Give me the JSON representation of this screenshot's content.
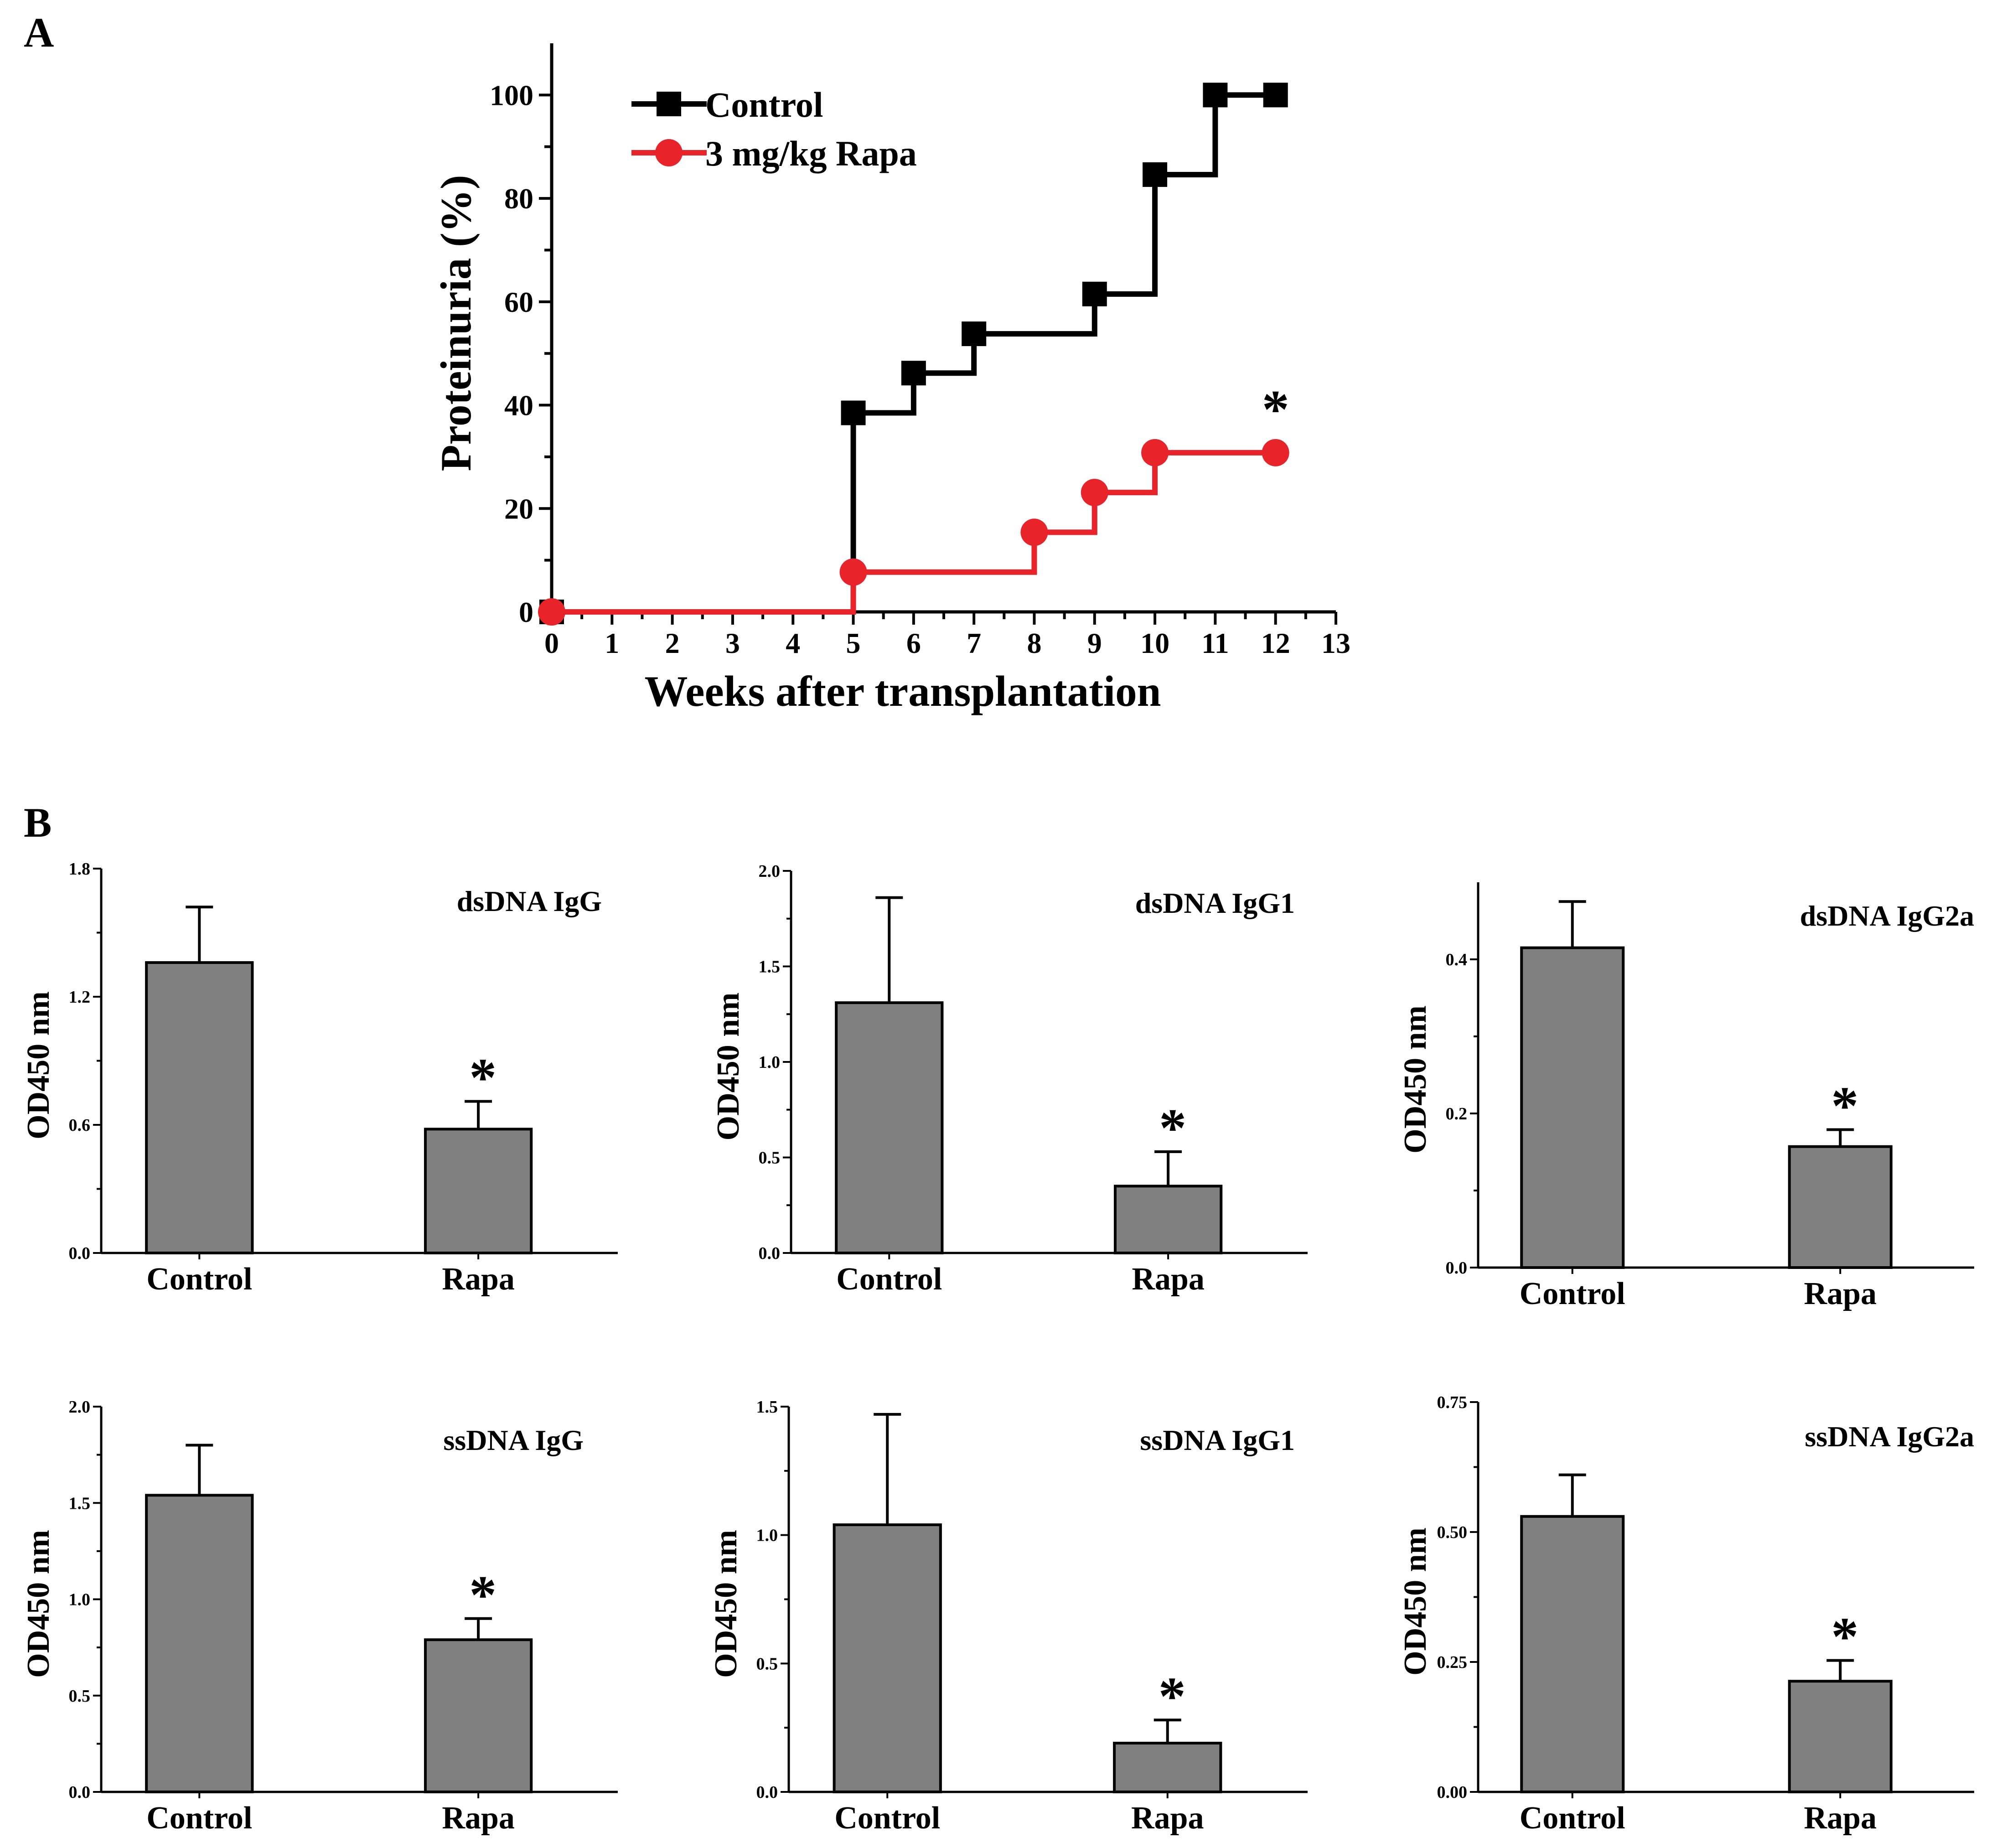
{
  "panel_labels": {
    "a": "A",
    "b": "B"
  },
  "colors": {
    "control": "#000000",
    "rapa": "#e8232a",
    "bar_fill": "#808080"
  },
  "chart_data": [
    {
      "type": "line",
      "step": true,
      "xlabel": "Weeks after transplantation",
      "ylabel": "Proteinuria (%)",
      "xlim": [
        0,
        13
      ],
      "ylim": [
        0,
        110
      ],
      "xticks": [
        0,
        1,
        2,
        3,
        4,
        5,
        6,
        7,
        8,
        9,
        10,
        11,
        12,
        13
      ],
      "yticks": [
        0,
        20,
        40,
        60,
        80,
        100
      ],
      "legend": "top-left",
      "series": [
        {
          "name": "Control",
          "marker": "square",
          "x": [
            0,
            5,
            6,
            7,
            9,
            10,
            11,
            12
          ],
          "y": [
            0,
            38.5,
            46.2,
            53.8,
            61.5,
            84.6,
            100,
            100
          ]
        },
        {
          "name": "3 mg/kg Rapa",
          "marker": "circle",
          "x": [
            0,
            5,
            8,
            9,
            10,
            12
          ],
          "y": [
            0,
            7.7,
            15.4,
            23.1,
            30.8,
            30.8
          ]
        }
      ],
      "annotations": [
        "*"
      ]
    },
    {
      "type": "bar",
      "title": "dsDNA IgG",
      "ylabel": "OD450 nm",
      "categories": [
        "Control",
        "Rapa"
      ],
      "values": [
        1.36,
        0.58
      ],
      "errors": [
        0.26,
        0.13
      ],
      "ylim": [
        0,
        1.8
      ],
      "yticks": [
        0.0,
        0.6,
        1.2,
        1.8
      ],
      "tick_labels": [
        "0.0",
        "0.6",
        "1.2",
        "1.8"
      ],
      "annotations": [
        "*"
      ]
    },
    {
      "type": "bar",
      "title": "dsDNA IgG1",
      "ylabel": "OD450 nm",
      "categories": [
        "Control",
        "Rapa"
      ],
      "values": [
        1.31,
        0.35
      ],
      "errors": [
        0.55,
        0.18
      ],
      "ylim": [
        0,
        2.0
      ],
      "yticks": [
        0.0,
        0.5,
        1.0,
        1.5,
        2.0
      ],
      "tick_labels": [
        "0.0",
        "0.5",
        "1.0",
        "1.5",
        "2.0"
      ],
      "annotations": [
        "*"
      ]
    },
    {
      "type": "bar",
      "title": "dsDNA IgG2a",
      "ylabel": "OD450 nm",
      "categories": [
        "Control",
        "Rapa"
      ],
      "values": [
        0.415,
        0.157
      ],
      "errors": [
        0.06,
        0.022
      ],
      "ylim": [
        0,
        0.5
      ],
      "yticks": [
        0.0,
        0.2,
        0.4
      ],
      "tick_labels": [
        "0.0",
        "0.2",
        "0.4"
      ],
      "annotations": [
        "*"
      ]
    },
    {
      "type": "bar",
      "title": "ssDNA IgG",
      "ylabel": "OD450 nm",
      "categories": [
        "Control",
        "Rapa"
      ],
      "values": [
        1.54,
        0.79
      ],
      "errors": [
        0.26,
        0.11
      ],
      "ylim": [
        0,
        2.0
      ],
      "yticks": [
        0.0,
        0.5,
        1.0,
        1.5,
        2.0
      ],
      "tick_labels": [
        "0.0",
        "0.5",
        "1.0",
        "1.5",
        "2.0"
      ],
      "annotations": [
        "*"
      ]
    },
    {
      "type": "bar",
      "title": "ssDNA IgG1",
      "ylabel": "OD450 nm",
      "categories": [
        "Control",
        "Rapa"
      ],
      "values": [
        1.04,
        0.19
      ],
      "errors": [
        0.43,
        0.09
      ],
      "ylim": [
        0,
        1.5
      ],
      "yticks": [
        0.0,
        0.5,
        1.0,
        1.5
      ],
      "tick_labels": [
        "0.0",
        "0.5",
        "1.0",
        "1.5"
      ],
      "annotations": [
        "*"
      ]
    },
    {
      "type": "bar",
      "title": "ssDNA IgG2a",
      "ylabel": "OD450 nm",
      "categories": [
        "Control",
        "Rapa"
      ],
      "values": [
        0.53,
        0.213
      ],
      "errors": [
        0.08,
        0.04
      ],
      "ylim": [
        0,
        0.75
      ],
      "yticks": [
        0.0,
        0.25,
        0.5,
        0.75
      ],
      "tick_labels": [
        "0.00",
        "0.25",
        "0.50",
        "0.75"
      ],
      "annotations": [
        "*"
      ]
    }
  ]
}
